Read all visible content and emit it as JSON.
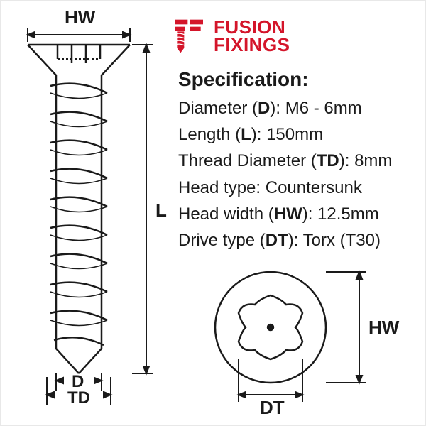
{
  "brand": {
    "name_line1": "FUSION",
    "name_line2": "FIXINGS",
    "color": "#d4152a"
  },
  "spec": {
    "title": "Specification:",
    "lines": [
      {
        "label": "Diameter",
        "code": "D",
        "value": "M6 - 6mm"
      },
      {
        "label": "Length",
        "code": "L",
        "value": "150mm"
      },
      {
        "label": "Thread Diameter",
        "code": "TD",
        "value": "8mm"
      },
      {
        "label": "Head type",
        "code": "",
        "value": "Countersunk"
      },
      {
        "label": "Head width",
        "code": "HW",
        "value": "12.5mm"
      },
      {
        "label": "Drive type",
        "code": "DT",
        "value": "Torx (T30)"
      }
    ]
  },
  "dimension_labels": {
    "hw_top": "HW",
    "l": "L",
    "d": "D",
    "td": "TD",
    "hw_side": "HW",
    "dt": "DT"
  },
  "diagram": {
    "stroke_color": "#1a1a1a",
    "stroke_width": 2.5,
    "screw": {
      "head_width": 140,
      "head_height": 40,
      "shank_width": 55,
      "thread_width": 78,
      "length": 420,
      "thread_turns": 9
    },
    "head_top_view": {
      "diameter": 150,
      "torx_diameter": 85
    }
  }
}
